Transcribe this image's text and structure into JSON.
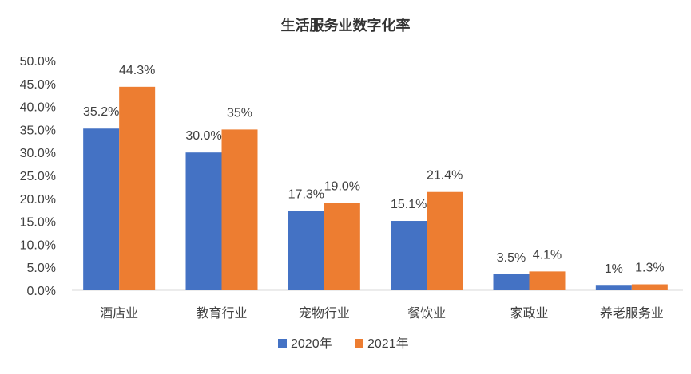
{
  "chart_data": {
    "type": "bar",
    "title": "生活服务业数字化率",
    "categories": [
      "酒店业",
      "教育行业",
      "宠物行业",
      "餐饮业",
      "家政业",
      "养老服务业"
    ],
    "series": [
      {
        "name": "2020年",
        "color": "#4472C4",
        "values": [
          35.2,
          30.0,
          17.3,
          15.1,
          3.5,
          1.0
        ],
        "labels": [
          "35.2%",
          "30.0%",
          "17.3%",
          "15.1%",
          "3.5%",
          "1%"
        ]
      },
      {
        "name": "2021年",
        "color": "#ED7D31",
        "values": [
          44.3,
          35.0,
          19.0,
          21.4,
          4.1,
          1.3
        ],
        "labels": [
          "44.3%",
          "35%",
          "19.0%",
          "21.4%",
          "4.1%",
          "1.3%"
        ]
      }
    ],
    "yticks": [
      "0.0%",
      "5.0%",
      "10.0%",
      "15.0%",
      "20.0%",
      "25.0%",
      "30.0%",
      "35.0%",
      "40.0%",
      "45.0%",
      "50.0%"
    ],
    "ylim": [
      0,
      50
    ],
    "grid": false,
    "legend_position": "bottom"
  }
}
